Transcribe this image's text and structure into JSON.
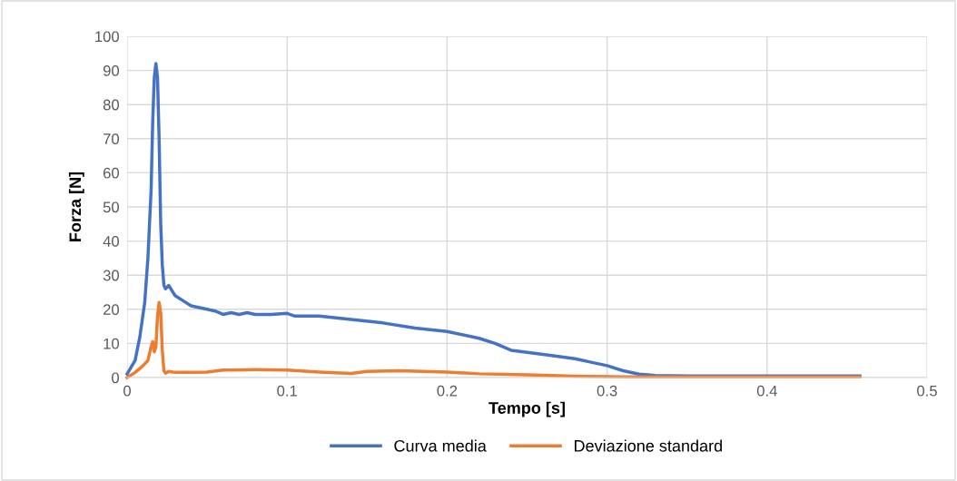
{
  "chart_data": {
    "type": "line",
    "xlabel": "Tempo [s]",
    "ylabel": "Forza [N]",
    "xlim": [
      0,
      0.5
    ],
    "xticks": [
      {
        "value": 0,
        "label": "0"
      },
      {
        "value": 0.1,
        "label": "0.1"
      },
      {
        "value": 0.2,
        "label": "0.2"
      },
      {
        "value": 0.3,
        "label": "0.3"
      },
      {
        "value": 0.4,
        "label": "0.4"
      },
      {
        "value": 0.5,
        "label": "0.5"
      }
    ],
    "ylim": [
      0,
      100
    ],
    "yticks": [
      0,
      10,
      20,
      30,
      40,
      50,
      60,
      70,
      80,
      90,
      100
    ],
    "grid": true,
    "legend": "bottom",
    "marker": "none",
    "line_style": "solid",
    "series": [
      {
        "name": "Curva media",
        "color": "#4472c4",
        "x": [
          0,
          0.005,
          0.008,
          0.011,
          0.013,
          0.015,
          0.016,
          0.017,
          0.018,
          0.019,
          0.02,
          0.021,
          0.022,
          0.023,
          0.024,
          0.026,
          0.028,
          0.03,
          0.035,
          0.04,
          0.05,
          0.055,
          0.06,
          0.065,
          0.07,
          0.075,
          0.08,
          0.09,
          0.1,
          0.105,
          0.12,
          0.14,
          0.16,
          0.18,
          0.2,
          0.22,
          0.23,
          0.24,
          0.26,
          0.28,
          0.29,
          0.3,
          0.31,
          0.32,
          0.33,
          0.35,
          0.4,
          0.45,
          0.458
        ],
        "values": [
          1,
          5,
          12,
          22,
          35,
          55,
          75,
          88,
          92,
          88,
          70,
          45,
          33,
          27,
          26,
          27,
          25.5,
          24,
          22.5,
          21,
          20,
          19.5,
          18.5,
          19,
          18.5,
          19,
          18.5,
          18.5,
          18.8,
          18,
          18,
          17,
          16,
          14.5,
          13.5,
          11.5,
          10,
          8,
          6.8,
          5.5,
          4.5,
          3.5,
          2,
          1,
          0.6,
          0.5,
          0.5,
          0.5,
          0.5
        ]
      },
      {
        "name": "Deviazione standard",
        "color": "#ed7d31",
        "x": [
          0,
          0.005,
          0.01,
          0.013,
          0.015,
          0.016,
          0.017,
          0.018,
          0.019,
          0.02,
          0.021,
          0.022,
          0.023,
          0.024,
          0.026,
          0.03,
          0.04,
          0.05,
          0.06,
          0.08,
          0.1,
          0.12,
          0.14,
          0.15,
          0.17,
          0.2,
          0.22,
          0.25,
          0.28,
          0.31,
          0.35,
          0.4,
          0.458
        ],
        "values": [
          0,
          1.5,
          3.5,
          5,
          9,
          10.5,
          7.5,
          9,
          18,
          22,
          19,
          8,
          2,
          1.3,
          1.8,
          1.5,
          1.5,
          1.6,
          2.2,
          2.3,
          2.2,
          1.6,
          1.2,
          1.8,
          2,
          1.6,
          1.1,
          0.8,
          0.4,
          0.2,
          0.2,
          0.2,
          0.2
        ]
      }
    ]
  }
}
